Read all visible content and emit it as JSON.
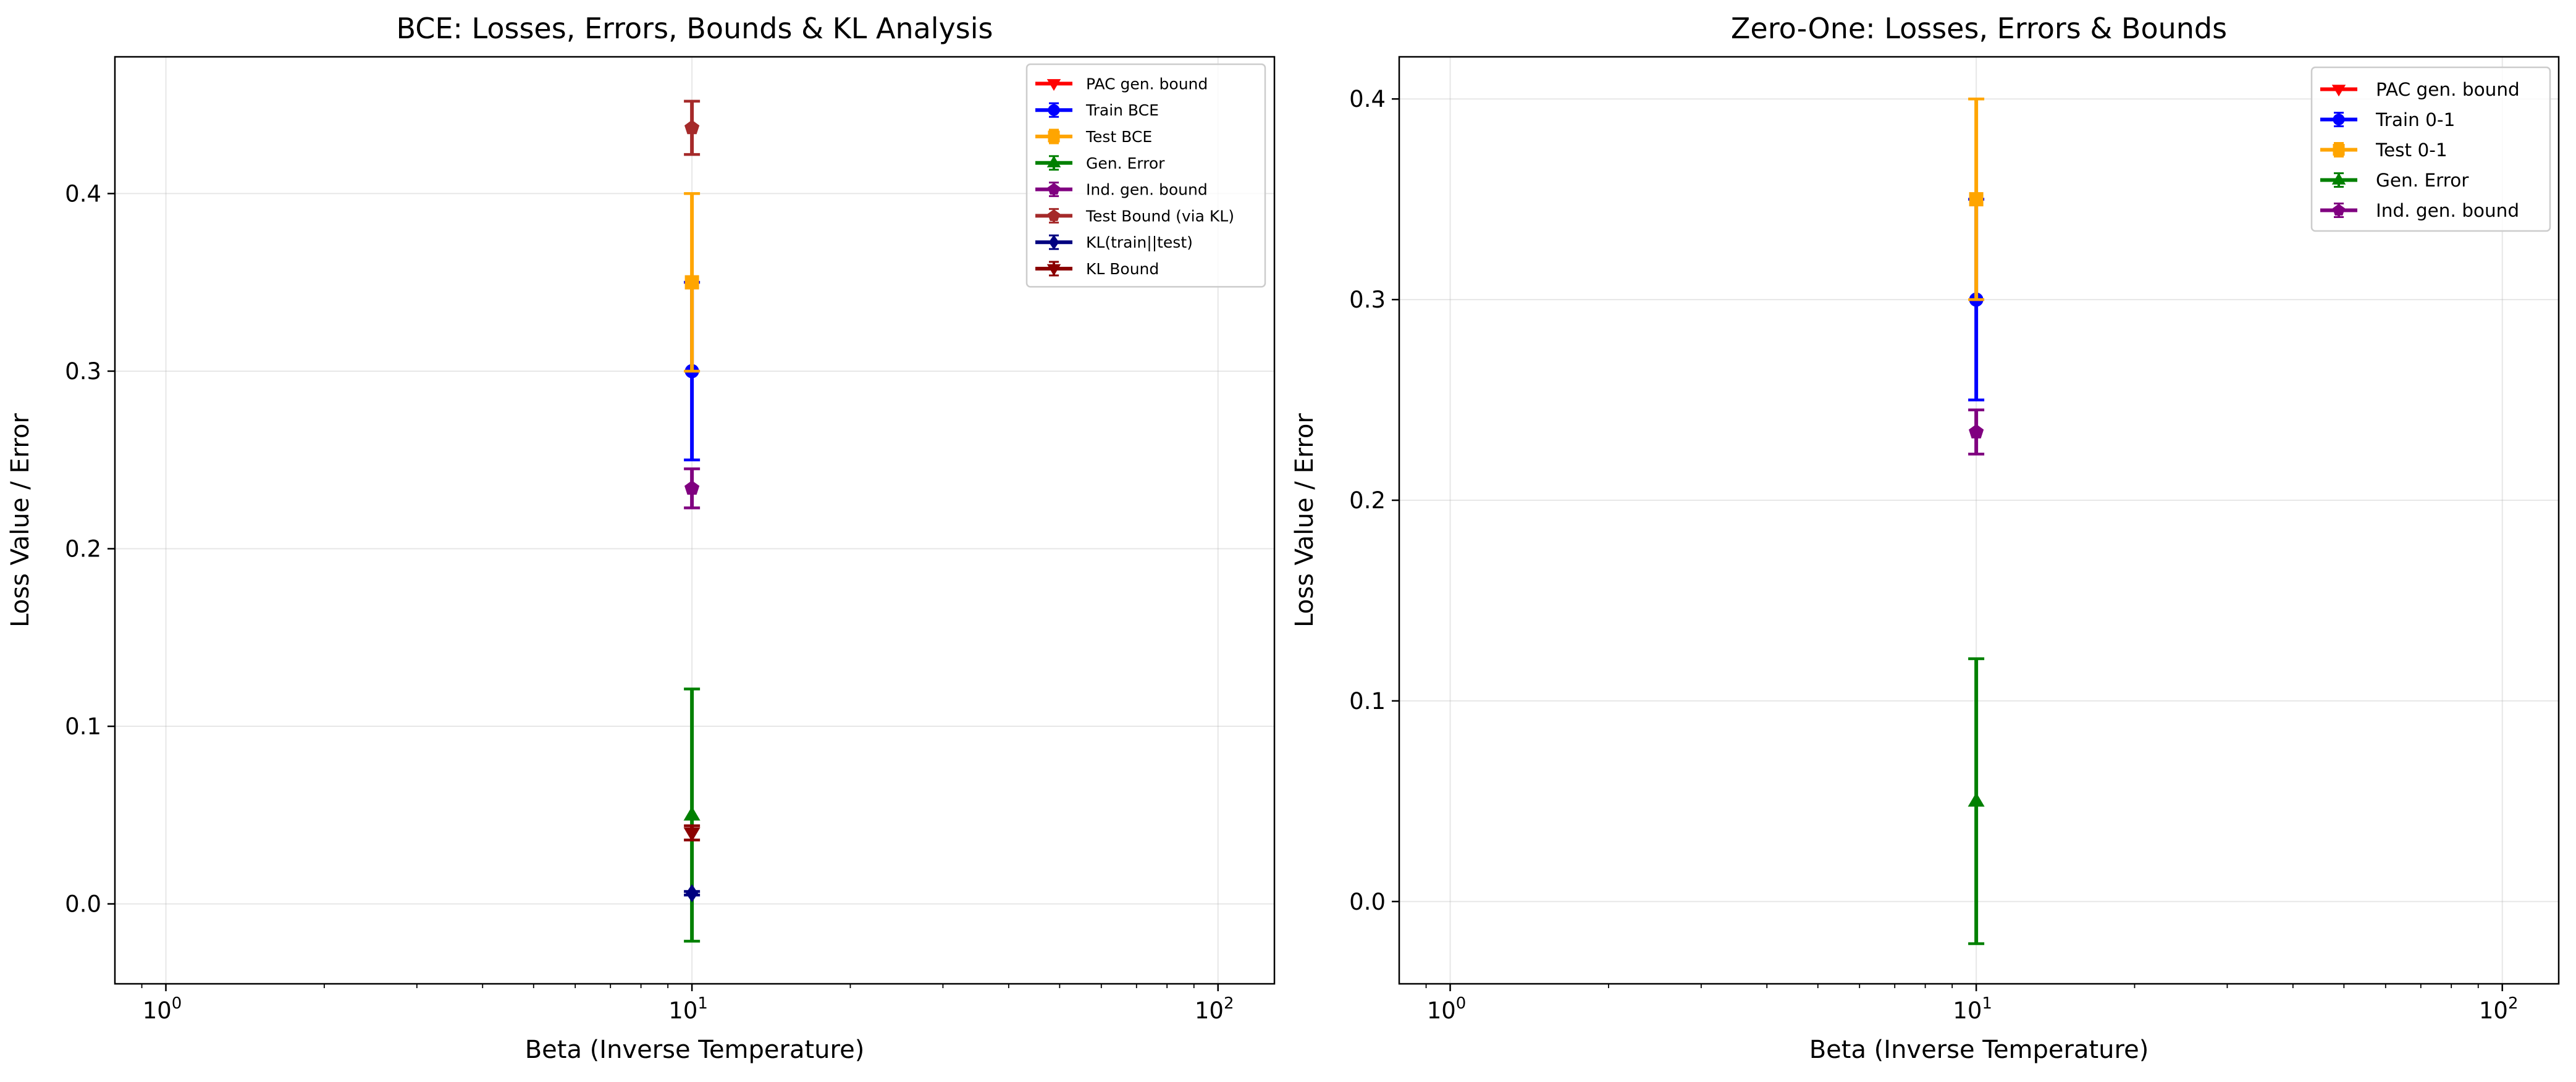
{
  "chart_data": [
    {
      "type": "scatter",
      "title": "BCE: Losses, Errors, Bounds & KL Analysis",
      "xlabel": "Beta (Inverse Temperature)",
      "ylabel": "Loss Value / Error",
      "xscale": "log",
      "xlim": [
        0.8,
        128
      ],
      "ylim": [
        -0.045,
        0.477
      ],
      "xticks": [
        {
          "value": 1,
          "base": "10",
          "exp": "0"
        },
        {
          "value": 10,
          "base": "10",
          "exp": "1"
        },
        {
          "value": 100,
          "base": "10",
          "exp": "2"
        }
      ],
      "yticks": [
        "0.0",
        "0.1",
        "0.2",
        "0.3",
        "0.4"
      ],
      "grid": true,
      "legend_position": "top-right",
      "series": [
        {
          "name": "PAC gen. bound",
          "color": "#ff0000",
          "marker": "triangle-down",
          "x": [
            10
          ],
          "y": [
            null
          ],
          "err": [
            null
          ]
        },
        {
          "name": "Train BCE",
          "color": "#0000ff",
          "marker": "circle",
          "x": [
            10
          ],
          "y": [
            0.3
          ],
          "err": [
            0.05
          ]
        },
        {
          "name": "Test BCE",
          "color": "#ffa500",
          "marker": "square",
          "x": [
            10
          ],
          "y": [
            0.35
          ],
          "err": [
            0.05
          ]
        },
        {
          "name": "Gen. Error",
          "color": "#008000",
          "marker": "triangle-up",
          "x": [
            10
          ],
          "y": [
            0.05
          ],
          "err": [
            0.071
          ]
        },
        {
          "name": "Ind. gen. bound",
          "color": "#800080",
          "marker": "pentagon",
          "x": [
            10
          ],
          "y": [
            0.234
          ],
          "err": [
            0.011
          ]
        },
        {
          "name": "Test Bound (via KL)",
          "color": "#a52a2a",
          "marker": "pentagon",
          "x": [
            10
          ],
          "y": [
            0.437
          ],
          "err": [
            0.015
          ]
        },
        {
          "name": "KL(train||test)",
          "color": "#000080",
          "marker": "diamond",
          "x": [
            10
          ],
          "y": [
            0.006
          ],
          "err": [
            0.001
          ]
        },
        {
          "name": "KL Bound",
          "color": "#8b0000",
          "marker": "triangle-down",
          "x": [
            10
          ],
          "y": [
            0.04
          ],
          "err": [
            0.004
          ]
        }
      ]
    },
    {
      "type": "scatter",
      "title": "Zero-One: Losses, Errors & Bounds",
      "xlabel": "Beta (Inverse Temperature)",
      "ylabel": "Loss Value / Error",
      "xscale": "log",
      "xlim": [
        0.8,
        128
      ],
      "ylim": [
        -0.041,
        0.421
      ],
      "xticks": [
        {
          "value": 1,
          "base": "10",
          "exp": "0"
        },
        {
          "value": 10,
          "base": "10",
          "exp": "1"
        },
        {
          "value": 100,
          "base": "10",
          "exp": "2"
        }
      ],
      "yticks": [
        "0.0",
        "0.1",
        "0.2",
        "0.3",
        "0.4"
      ],
      "grid": true,
      "legend_position": "top-right",
      "series": [
        {
          "name": "PAC gen. bound",
          "color": "#ff0000",
          "marker": "triangle-down",
          "x": [
            10
          ],
          "y": [
            null
          ],
          "err": [
            null
          ]
        },
        {
          "name": "Train 0-1",
          "color": "#0000ff",
          "marker": "circle",
          "x": [
            10
          ],
          "y": [
            0.3
          ],
          "err": [
            0.05
          ]
        },
        {
          "name": "Test 0-1",
          "color": "#ffa500",
          "marker": "square",
          "x": [
            10
          ],
          "y": [
            0.35
          ],
          "err": [
            0.05
          ]
        },
        {
          "name": "Gen. Error",
          "color": "#008000",
          "marker": "triangle-up",
          "x": [
            10
          ],
          "y": [
            0.05
          ],
          "err": [
            0.071
          ]
        },
        {
          "name": "Ind. gen. bound",
          "color": "#800080",
          "marker": "pentagon",
          "x": [
            10
          ],
          "y": [
            0.234
          ],
          "err": [
            0.011
          ]
        }
      ]
    }
  ]
}
